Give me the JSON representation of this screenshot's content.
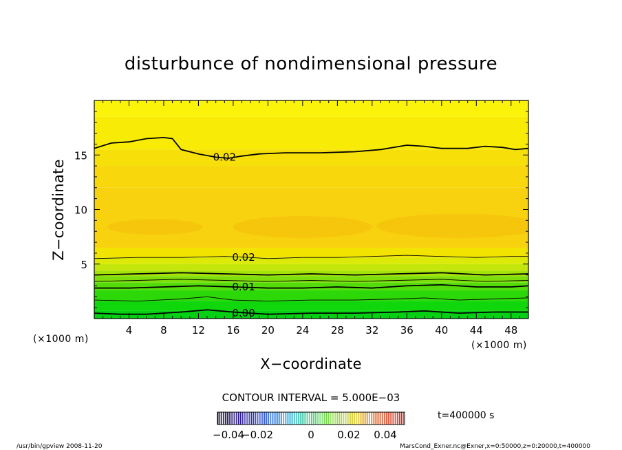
{
  "chart_data": {
    "type": "heatmap",
    "title": "disturbunce of nondimensional pressure",
    "xlabel": "X−coordinate",
    "ylabel": "Z−coordinate",
    "x_unit_label": "(×1000 m)",
    "y_unit_label": "(×1000 m)",
    "xlim": [
      0,
      50
    ],
    "ylim": [
      0,
      20
    ],
    "x_ticks": [
      4,
      8,
      12,
      16,
      20,
      24,
      28,
      32,
      36,
      40,
      44,
      48
    ],
    "y_ticks": [
      5,
      10,
      15
    ],
    "contour_interval_label": "CONTOUR INTERVAL = 5.000E−03",
    "contour_interval": 0.005,
    "contour_labels": [
      {
        "text": "0.02",
        "x": 15,
        "z": 14.8
      },
      {
        "text": "0.02",
        "x": 17.2,
        "z": 5.6
      },
      {
        "text": "0.01",
        "x": 17.2,
        "z": 2.9
      },
      {
        "text": "0.00",
        "x": 17.2,
        "z": 0.5
      }
    ],
    "contours": [
      {
        "level": 0.02,
        "points": [
          [
            0,
            15.6
          ],
          [
            2,
            16.1
          ],
          [
            4,
            16.2
          ],
          [
            6,
            16.5
          ],
          [
            8,
            16.6
          ],
          [
            9,
            16.5
          ],
          [
            9.5,
            16.0
          ],
          [
            10,
            15.5
          ],
          [
            12,
            15.1
          ],
          [
            14,
            14.8
          ],
          [
            15.5,
            14.7
          ],
          [
            17,
            14.9
          ],
          [
            19,
            15.1
          ],
          [
            22,
            15.2
          ],
          [
            26,
            15.2
          ],
          [
            30,
            15.3
          ],
          [
            33,
            15.5
          ],
          [
            36,
            15.9
          ],
          [
            38,
            15.8
          ],
          [
            40,
            15.6
          ],
          [
            43,
            15.6
          ],
          [
            45,
            15.8
          ],
          [
            47,
            15.7
          ],
          [
            48.5,
            15.5
          ],
          [
            50,
            15.6
          ]
        ]
      },
      {
        "level": 0.025,
        "points": [
          [
            0,
            5.5
          ],
          [
            5,
            5.6
          ],
          [
            10,
            5.6
          ],
          [
            15,
            5.7
          ],
          [
            18,
            5.6
          ],
          [
            20,
            5.5
          ],
          [
            24,
            5.6
          ],
          [
            28,
            5.6
          ],
          [
            32,
            5.7
          ],
          [
            36,
            5.8
          ],
          [
            40,
            5.7
          ],
          [
            44,
            5.6
          ],
          [
            48,
            5.7
          ],
          [
            50,
            5.7
          ]
        ]
      },
      {
        "level": 0.02,
        "points": [
          [
            0,
            4.0
          ],
          [
            5,
            4.1
          ],
          [
            10,
            4.2
          ],
          [
            15,
            4.1
          ],
          [
            20,
            4.0
          ],
          [
            25,
            4.1
          ],
          [
            30,
            4.0
          ],
          [
            35,
            4.1
          ],
          [
            40,
            4.2
          ],
          [
            45,
            4.0
          ],
          [
            50,
            4.1
          ]
        ]
      },
      {
        "level": 0.015,
        "points": [
          [
            0,
            3.4
          ],
          [
            5,
            3.5
          ],
          [
            10,
            3.6
          ],
          [
            15,
            3.5
          ],
          [
            20,
            3.4
          ],
          [
            25,
            3.5
          ],
          [
            30,
            3.4
          ],
          [
            35,
            3.5
          ],
          [
            40,
            3.6
          ],
          [
            45,
            3.4
          ],
          [
            50,
            3.5
          ]
        ]
      },
      {
        "level": 0.01,
        "points": [
          [
            0,
            2.8
          ],
          [
            4,
            2.8
          ],
          [
            8,
            2.9
          ],
          [
            12,
            3.0
          ],
          [
            16,
            2.9
          ],
          [
            20,
            2.8
          ],
          [
            24,
            2.8
          ],
          [
            28,
            2.9
          ],
          [
            32,
            2.8
          ],
          [
            36,
            3.0
          ],
          [
            40,
            3.1
          ],
          [
            44,
            2.9
          ],
          [
            48,
            2.9
          ],
          [
            50,
            3.0
          ]
        ]
      },
      {
        "level": 0.005,
        "points": [
          [
            0,
            1.7
          ],
          [
            5,
            1.6
          ],
          [
            10,
            1.8
          ],
          [
            13,
            2.0
          ],
          [
            16,
            1.7
          ],
          [
            20,
            1.6
          ],
          [
            25,
            1.7
          ],
          [
            30,
            1.7
          ],
          [
            35,
            1.8
          ],
          [
            38,
            1.9
          ],
          [
            42,
            1.7
          ],
          [
            46,
            1.8
          ],
          [
            50,
            1.9
          ]
        ]
      },
      {
        "level": 0.0,
        "points": [
          [
            0,
            0.5
          ],
          [
            3,
            0.4
          ],
          [
            6,
            0.4
          ],
          [
            10,
            0.6
          ],
          [
            13,
            0.8
          ],
          [
            16,
            0.6
          ],
          [
            20,
            0.4
          ],
          [
            25,
            0.5
          ],
          [
            30,
            0.5
          ],
          [
            35,
            0.6
          ],
          [
            38,
            0.7
          ],
          [
            42,
            0.5
          ],
          [
            46,
            0.6
          ],
          [
            50,
            0.6
          ]
        ]
      }
    ],
    "color_bands": [
      {
        "from": 18.5,
        "to": 20,
        "color": "#fbf40a"
      },
      {
        "from": 15.5,
        "to": 18.5,
        "color": "#f8ec06"
      },
      {
        "from": 14.0,
        "to": 15.5,
        "color": "#f7e009"
      },
      {
        "from": 12.0,
        "to": 14.0,
        "color": "#f8d70c"
      },
      {
        "from": 6.5,
        "to": 12.0,
        "color": "#f8d10f"
      },
      {
        "from": 5.6,
        "to": 6.5,
        "color": "#f2e400"
      },
      {
        "from": 5.0,
        "to": 5.6,
        "color": "#dcea06"
      },
      {
        "from": 4.4,
        "to": 5.0,
        "color": "#c4e60a"
      },
      {
        "from": 3.9,
        "to": 4.4,
        "color": "#a4e208"
      },
      {
        "from": 3.3,
        "to": 3.9,
        "color": "#7ede09"
      },
      {
        "from": 2.6,
        "to": 3.3,
        "color": "#54db0a"
      },
      {
        "from": 1.6,
        "to": 2.6,
        "color": "#2cd808"
      },
      {
        "from": 0.7,
        "to": 1.6,
        "color": "#10d60c"
      },
      {
        "from": 0.0,
        "to": 0.7,
        "color": "#06d014"
      }
    ],
    "blobs": [
      {
        "x": 7,
        "z": 8.4,
        "rx": 5.5,
        "rz": 0.7
      },
      {
        "x": 24,
        "z": 8.4,
        "rx": 8,
        "rz": 1.0
      },
      {
        "x": 42,
        "z": 8.5,
        "rx": 9.5,
        "rz": 1.1
      }
    ],
    "colorbar": {
      "tick_labels": [
        "−0.04",
        "−0.02",
        "0",
        "0.02",
        "0.04"
      ],
      "tick_values": [
        -0.04,
        -0.02,
        0,
        0.02,
        0.04
      ],
      "range": [
        -0.05,
        0.05
      ]
    },
    "time_label": "t=400000 s"
  },
  "footer": {
    "left": "/usr/bin/gpview   2008-11-20",
    "right": "MarsCond_Exner.nc@Exner,x=0:50000,z=0:20000,t=400000"
  },
  "colors": {
    "contour_line": "#000000",
    "blob": "#f5c40c"
  }
}
